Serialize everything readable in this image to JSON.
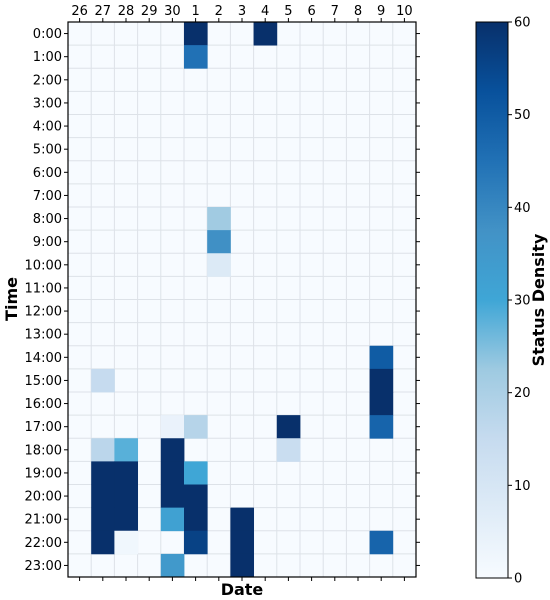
{
  "chart_data": {
    "type": "heatmap",
    "title": "",
    "xlabel": "Date",
    "ylabel": "Time",
    "x_categories": [
      "26",
      "27",
      "28",
      "29",
      "30",
      "1",
      "2",
      "3",
      "4",
      "5",
      "6",
      "7",
      "8",
      "9",
      "10"
    ],
    "y_categories": [
      "0:00",
      "1:00",
      "2:00",
      "3:00",
      "4:00",
      "5:00",
      "6:00",
      "7:00",
      "8:00",
      "9:00",
      "10:00",
      "11:00",
      "12:00",
      "13:00",
      "14:00",
      "15:00",
      "16:00",
      "17:00",
      "18:00",
      "19:00",
      "20:00",
      "21:00",
      "22:00",
      "23:00"
    ],
    "colorbar": {
      "label": "Status Density",
      "range": [
        0,
        60
      ],
      "ticks": [
        "0",
        "10",
        "20",
        "30",
        "40",
        "50",
        "60"
      ],
      "colormap": "Blues"
    },
    "grid": true,
    "cells": [
      {
        "date": "1",
        "time": "0:00",
        "value": 60
      },
      {
        "date": "4",
        "time": "0:00",
        "value": 60
      },
      {
        "date": "1",
        "time": "1:00",
        "value": 45
      },
      {
        "date": "2",
        "time": "8:00",
        "value": 22
      },
      {
        "date": "2",
        "time": "9:00",
        "value": 38
      },
      {
        "date": "2",
        "time": "10:00",
        "value": 8
      },
      {
        "date": "9",
        "time": "14:00",
        "value": 50
      },
      {
        "date": "27",
        "time": "15:00",
        "value": 15
      },
      {
        "date": "9",
        "time": "15:00",
        "value": 60
      },
      {
        "date": "9",
        "time": "16:00",
        "value": 60
      },
      {
        "date": "30",
        "time": "17:00",
        "value": 4
      },
      {
        "date": "1",
        "time": "17:00",
        "value": 18
      },
      {
        "date": "5",
        "time": "17:00",
        "value": 60
      },
      {
        "date": "9",
        "time": "17:00",
        "value": 48
      },
      {
        "date": "27",
        "time": "18:00",
        "value": 17
      },
      {
        "date": "28",
        "time": "18:00",
        "value": 28
      },
      {
        "date": "30",
        "time": "18:00",
        "value": 60
      },
      {
        "date": "5",
        "time": "18:00",
        "value": 14
      },
      {
        "date": "27",
        "time": "19:00",
        "value": 60
      },
      {
        "date": "28",
        "time": "19:00",
        "value": 60
      },
      {
        "date": "30",
        "time": "19:00",
        "value": 60
      },
      {
        "date": "1",
        "time": "19:00",
        "value": 30
      },
      {
        "date": "27",
        "time": "20:00",
        "value": 60
      },
      {
        "date": "28",
        "time": "20:00",
        "value": 60
      },
      {
        "date": "30",
        "time": "20:00",
        "value": 60
      },
      {
        "date": "1",
        "time": "20:00",
        "value": 60
      },
      {
        "date": "27",
        "time": "21:00",
        "value": 60
      },
      {
        "date": "28",
        "time": "21:00",
        "value": 60
      },
      {
        "date": "30",
        "time": "21:00",
        "value": 32
      },
      {
        "date": "1",
        "time": "21:00",
        "value": 60
      },
      {
        "date": "3",
        "time": "21:00",
        "value": 60
      },
      {
        "date": "27",
        "time": "22:00",
        "value": 60
      },
      {
        "date": "28",
        "time": "22:00",
        "value": 2
      },
      {
        "date": "1",
        "time": "22:00",
        "value": 56
      },
      {
        "date": "3",
        "time": "22:00",
        "value": 60
      },
      {
        "date": "9",
        "time": "22:00",
        "value": 48
      },
      {
        "date": "30",
        "time": "23:00",
        "value": 35
      },
      {
        "date": "3",
        "time": "23:00",
        "value": 60
      }
    ]
  }
}
